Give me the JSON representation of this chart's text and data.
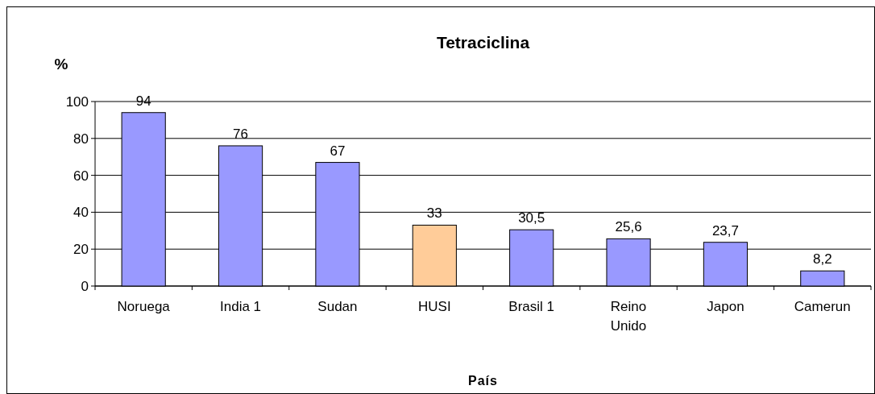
{
  "chart_data": {
    "type": "bar",
    "title": "Tetraciclina",
    "xlabel": "País",
    "ylabel": "%",
    "categories": [
      "Noruega",
      "India 1",
      "Sudan",
      "HUSI",
      "Brasil 1",
      "Reino Unido",
      "Japon",
      "Camerun"
    ],
    "values": [
      94,
      76,
      67,
      33,
      30.5,
      25.6,
      23.7,
      8.2
    ],
    "colors": [
      "#9999ff",
      "#9999ff",
      "#9999ff",
      "#ffcc99",
      "#9999ff",
      "#9999ff",
      "#9999ff",
      "#9999ff"
    ],
    "value_labels": [
      "94",
      "76",
      "67",
      "33",
      "30,5",
      "25,6",
      "23,7",
      "8,2"
    ],
    "ylim": [
      0,
      100
    ],
    "yticks": [
      0,
      20,
      40,
      60,
      80,
      100
    ],
    "grid": "y"
  }
}
